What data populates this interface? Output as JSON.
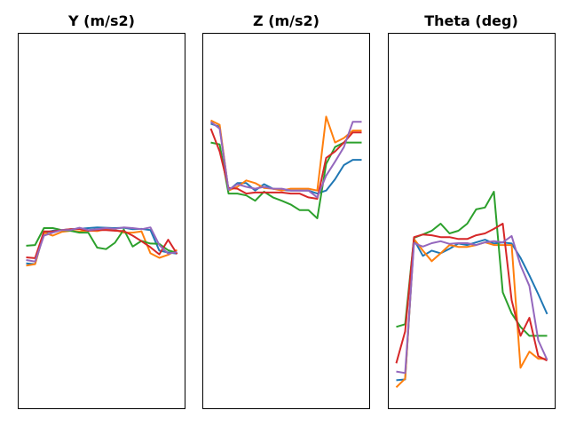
{
  "chart_data": [
    {
      "type": "line",
      "title": "Y (m/s2)",
      "xlabel": "",
      "ylabel": "",
      "x": [
        1,
        2,
        3,
        4,
        5,
        6,
        7,
        8,
        9,
        10,
        11,
        12,
        13,
        14,
        15,
        16,
        17,
        18
      ],
      "xlim": [
        0.1,
        18.9
      ],
      "ylim": [
        0,
        100
      ],
      "grid": false,
      "axis_ticks": false,
      "series": [
        {
          "color": "#1f77b4",
          "values": [
            38.7,
            38.5,
            46.8,
            47.4,
            47.6,
            47.8,
            47.9,
            48.1,
            48.3,
            48.2,
            48.1,
            48.2,
            47.8,
            47.9,
            47.6,
            42.1,
            41.6,
            41.3
          ]
        },
        {
          "color": "#ff7f0e",
          "values": [
            38.1,
            38.5,
            46.9,
            46.1,
            47.1,
            47.4,
            47.2,
            47.5,
            47.3,
            47.9,
            47.6,
            46.9,
            46.9,
            47.2,
            41.4,
            40.2,
            41.0,
            42.3
          ]
        },
        {
          "color": "#2ca02c",
          "values": [
            43.4,
            43.6,
            48.1,
            48.1,
            47.6,
            47.4,
            46.9,
            46.9,
            42.9,
            42.5,
            44.2,
            47.7,
            43.2,
            44.7,
            44.0,
            43.9,
            42.2,
            41.5
          ]
        },
        {
          "color": "#d62728",
          "values": [
            40.3,
            40.1,
            47.2,
            47.2,
            47.6,
            47.8,
            47.9,
            47.4,
            47.6,
            47.6,
            47.4,
            47.3,
            46.1,
            44.6,
            43.0,
            41.1,
            45.0,
            41.2
          ]
        },
        {
          "color": "#9467bd",
          "values": [
            39.6,
            39.2,
            46.1,
            46.9,
            47.6,
            47.6,
            48.2,
            47.6,
            47.8,
            48.1,
            47.9,
            48.3,
            48.1,
            47.8,
            48.3,
            43.6,
            41.3,
            41.7
          ]
        }
      ]
    },
    {
      "type": "line",
      "title": "Z (m/s2)",
      "xlabel": "",
      "ylabel": "",
      "x": [
        1,
        2,
        3,
        4,
        5,
        6,
        7,
        8,
        9,
        10,
        11,
        12,
        13,
        14,
        15,
        16,
        17,
        18
      ],
      "xlim": [
        0.1,
        18.9
      ],
      "ylim": [
        0,
        100
      ],
      "grid": false,
      "axis_ticks": false,
      "series": [
        {
          "color": "#1f77b4",
          "values": [
            75.9,
            75.1,
            58.1,
            60.1,
            60.1,
            58.1,
            59.8,
            58.6,
            58.3,
            58.1,
            58.1,
            58.1,
            57.3,
            58.1,
            61.1,
            64.9,
            66.3,
            66.3
          ]
        },
        {
          "color": "#ff7f0e",
          "values": [
            76.8,
            75.6,
            58.1,
            59.1,
            60.8,
            60.1,
            58.8,
            58.6,
            58.1,
            58.6,
            58.6,
            58.6,
            58.1,
            77.8,
            70.9,
            72.1,
            74.1,
            74.1
          ]
        },
        {
          "color": "#2ca02c",
          "values": [
            70.9,
            70.4,
            57.3,
            57.3,
            56.8,
            55.4,
            57.8,
            56.3,
            55.4,
            54.4,
            52.9,
            52.9,
            50.7,
            65.2,
            69.7,
            70.9,
            70.9,
            70.9
          ]
        },
        {
          "color": "#d62728",
          "values": [
            74.6,
            68.5,
            58.8,
            58.6,
            57.3,
            57.6,
            57.6,
            57.6,
            57.6,
            57.3,
            57.3,
            56.3,
            55.9,
            66.8,
            68.5,
            70.9,
            73.6,
            73.6
          ]
        },
        {
          "color": "#9467bd",
          "values": [
            76.4,
            74.6,
            58.3,
            59.8,
            59.1,
            58.6,
            59.1,
            58.6,
            58.6,
            58.1,
            58.1,
            58.1,
            56.3,
            62.1,
            65.8,
            69.7,
            76.4,
            76.4
          ]
        }
      ]
    },
    {
      "type": "line",
      "title": "Theta (deg)",
      "xlabel": "",
      "ylabel": "",
      "x": [
        1,
        2,
        3,
        4,
        5,
        6,
        7,
        8,
        9,
        10,
        11,
        12,
        13,
        14,
        15,
        16,
        17,
        18
      ],
      "xlim": [
        0.1,
        18.9
      ],
      "ylim": [
        0,
        100
      ],
      "grid": false,
      "axis_ticks": false,
      "series": [
        {
          "color": "#1f77b4",
          "values": [
            7.6,
            7.8,
            45.0,
            40.7,
            42.1,
            41.4,
            42.6,
            44.0,
            43.6,
            44.3,
            45.0,
            44.0,
            44.3,
            44.0,
            40.2,
            35.5,
            30.5,
            25.2
          ]
        },
        {
          "color": "#ff7f0e",
          "values": [
            5.7,
            8.0,
            45.2,
            42.1,
            39.3,
            41.4,
            43.6,
            43.1,
            43.1,
            43.6,
            44.3,
            43.6,
            43.6,
            43.6,
            10.9,
            15.2,
            13.3,
            13.3
          ]
        },
        {
          "color": "#2ca02c",
          "values": [
            21.8,
            22.5,
            45.5,
            46.4,
            47.4,
            49.3,
            46.7,
            47.4,
            49.3,
            53.1,
            53.6,
            57.8,
            31.0,
            25.4,
            21.8,
            19.4,
            19.4,
            19.4
          ]
        },
        {
          "color": "#d62728",
          "values": [
            12.1,
            20.6,
            45.7,
            46.4,
            46.2,
            45.7,
            45.7,
            45.2,
            45.2,
            46.2,
            46.7,
            47.9,
            49.3,
            28.9,
            19.4,
            24.2,
            14.0,
            12.8
          ]
        },
        {
          "color": "#9467bd",
          "values": [
            9.9,
            9.5,
            44.1,
            43.2,
            44.1,
            44.6,
            43.9,
            44.1,
            44.1,
            43.6,
            44.3,
            44.6,
            44.3,
            46.0,
            38.2,
            32.7,
            18.2,
            13.0
          ]
        }
      ]
    }
  ]
}
